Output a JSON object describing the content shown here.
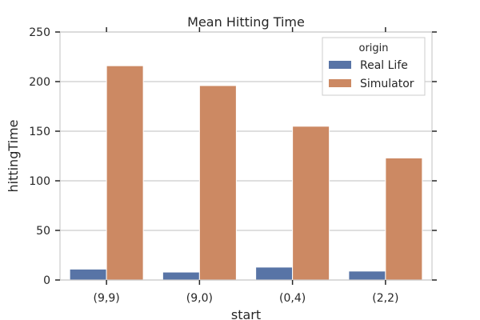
{
  "chart_data": {
    "type": "bar",
    "title": "Mean Hitting Time",
    "xlabel": "start",
    "ylabel": "hittingTime",
    "categories": [
      "(9,9)",
      "(9,0)",
      "(0,4)",
      "(2,2)"
    ],
    "series": [
      {
        "name": "Real Life",
        "values": [
          11,
          8,
          13,
          9
        ],
        "color": "#5874a6"
      },
      {
        "name": "Simulator",
        "values": [
          216,
          196,
          155,
          123
        ],
        "color": "#cc8963"
      }
    ],
    "ylim": [
      0,
      250
    ],
    "yticks": [
      "0",
      "50",
      "100",
      "150",
      "200",
      "250"
    ],
    "grid": true,
    "legend": {
      "title": "origin",
      "position": "top-right"
    }
  }
}
